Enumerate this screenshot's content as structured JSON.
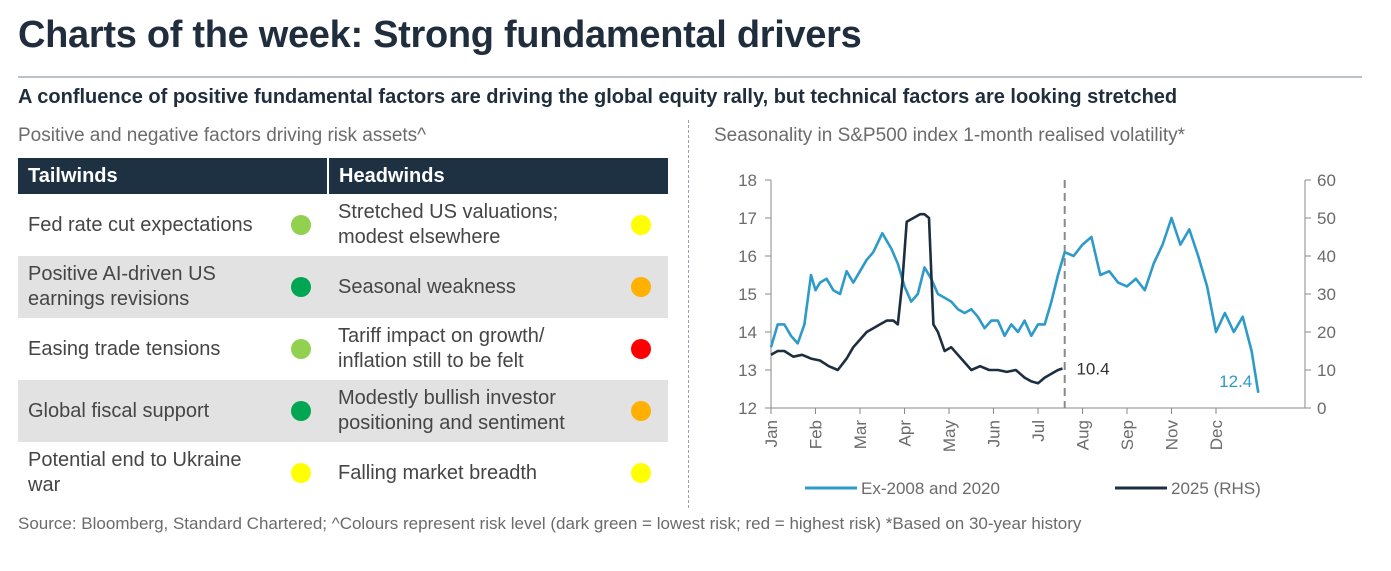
{
  "header": {
    "title": "Charts of the week: Strong fundamental drivers",
    "subtitle": "A confluence of positive fundamental factors are driving the global equity rally, but technical factors are looking stretched"
  },
  "left_panel": {
    "title": "Positive and negative factors driving risk assets^",
    "columns": [
      "Tailwinds",
      "Headwinds"
    ],
    "rows": [
      {
        "tailwind": "Fed rate cut expectations",
        "tailwind_color": "#92d050",
        "headwind": "Stretched US valuations; modest elsewhere",
        "headwind_color": "#ffff00"
      },
      {
        "tailwind": "Positive AI-driven US earnings revisions",
        "tailwind_color": "#00a651",
        "headwind": "Seasonal weakness",
        "headwind_color": "#ffb000"
      },
      {
        "tailwind": "Easing trade tensions",
        "tailwind_color": "#92d050",
        "headwind": "Tariff impact on growth/ inflation still to be felt",
        "headwind_color": "#ff0000"
      },
      {
        "tailwind": "Global fiscal support",
        "tailwind_color": "#00a651",
        "headwind": "Modestly bullish investor positioning and sentiment",
        "headwind_color": "#ffb000"
      },
      {
        "tailwind": "Potential end to Ukraine war",
        "tailwind_color": "#ffff00",
        "headwind": "Falling market breadth",
        "headwind_color": "#ffff00"
      }
    ]
  },
  "right_panel": {
    "title": "Seasonality in S&P500 index 1-month realised volatility*"
  },
  "source": "Source: Bloomberg, Standard Chartered; ^Colours represent risk level (dark green = lowest risk; red = highest risk) *Based on 30-year history",
  "chart_data": {
    "type": "line",
    "title": "Seasonality in S&P500 index 1-month realised volatility*",
    "x_categories": [
      "Jan",
      "Feb",
      "Mar",
      "Apr",
      "May",
      "Jun",
      "Jul",
      "Aug",
      "Sep",
      "Nov",
      "Dec"
    ],
    "x_domain": [
      0,
      12
    ],
    "x_tick_positions": [
      0,
      1,
      2,
      3,
      4,
      5,
      6,
      7,
      8,
      9,
      10
    ],
    "ylim_left": [
      12,
      18
    ],
    "y_ticks_left": [
      12,
      13,
      14,
      15,
      16,
      17,
      18
    ],
    "ylim_right": [
      0,
      60
    ],
    "y_ticks_right": [
      0,
      10,
      20,
      30,
      40,
      50,
      60
    ],
    "vline_x": 6.6,
    "series": [
      {
        "name": "Ex-2008 and 2020",
        "axis": "left",
        "color": "#2e9ac9",
        "end_label": "12.4",
        "x": [
          0,
          0.15,
          0.3,
          0.45,
          0.6,
          0.75,
          0.9,
          1.0,
          1.1,
          1.25,
          1.4,
          1.55,
          1.7,
          1.85,
          2.0,
          2.15,
          2.3,
          2.5,
          2.7,
          2.85,
          3.0,
          3.15,
          3.3,
          3.45,
          3.6,
          3.75,
          3.9,
          4.05,
          4.2,
          4.35,
          4.5,
          4.65,
          4.8,
          4.95,
          5.1,
          5.25,
          5.4,
          5.55,
          5.7,
          5.85,
          6.0,
          6.15,
          6.3,
          6.45,
          6.6,
          6.8,
          7.0,
          7.2,
          7.4,
          7.6,
          7.8,
          8.0,
          8.2,
          8.4,
          8.6,
          8.8,
          9.0,
          9.2,
          9.4,
          9.6,
          9.8,
          10.0,
          10.2,
          10.4,
          10.6,
          10.8,
          10.95
        ],
        "values": [
          13.6,
          14.2,
          14.2,
          13.9,
          13.7,
          14.2,
          15.5,
          15.1,
          15.3,
          15.4,
          15.1,
          15.0,
          15.6,
          15.3,
          15.6,
          15.9,
          16.1,
          16.6,
          16.2,
          15.8,
          15.2,
          14.8,
          15.0,
          15.7,
          15.4,
          15.0,
          14.9,
          14.8,
          14.6,
          14.5,
          14.6,
          14.4,
          14.1,
          14.3,
          14.3,
          13.9,
          14.2,
          14.0,
          14.3,
          13.9,
          14.2,
          14.2,
          14.8,
          15.5,
          16.1,
          16.0,
          16.3,
          16.5,
          15.5,
          15.6,
          15.3,
          15.2,
          15.4,
          15.1,
          15.8,
          16.3,
          17.0,
          16.3,
          16.7,
          16.0,
          15.2,
          14.0,
          14.5,
          14.0,
          14.4,
          13.5,
          12.4
        ]
      },
      {
        "name": "2025 (RHS)",
        "axis": "right",
        "color": "#1c2e40",
        "end_label": "10.4",
        "x": [
          0,
          0.15,
          0.3,
          0.5,
          0.7,
          0.9,
          1.1,
          1.3,
          1.5,
          1.7,
          1.85,
          2.0,
          2.15,
          2.3,
          2.45,
          2.6,
          2.75,
          2.85,
          2.95,
          3.05,
          3.2,
          3.35,
          3.45,
          3.55,
          3.65,
          3.75,
          3.9,
          4.05,
          4.2,
          4.35,
          4.5,
          4.7,
          4.9,
          5.1,
          5.3,
          5.5,
          5.7,
          5.85,
          6.0,
          6.15,
          6.3,
          6.45,
          6.55
        ],
        "values": [
          14,
          15,
          15,
          13.5,
          14,
          13,
          12.5,
          11,
          10,
          13,
          16,
          18,
          20,
          21,
          22,
          23,
          23,
          22,
          33,
          49,
          50,
          51,
          51,
          50,
          22,
          20,
          15,
          16,
          14,
          12,
          10,
          11,
          10,
          10,
          9.5,
          10,
          8,
          7,
          6.5,
          8,
          9,
          10,
          10.4
        ]
      }
    ],
    "legend": [
      "Ex-2008 and 2020",
      "2025 (RHS)"
    ],
    "legend_position": "bottom"
  }
}
